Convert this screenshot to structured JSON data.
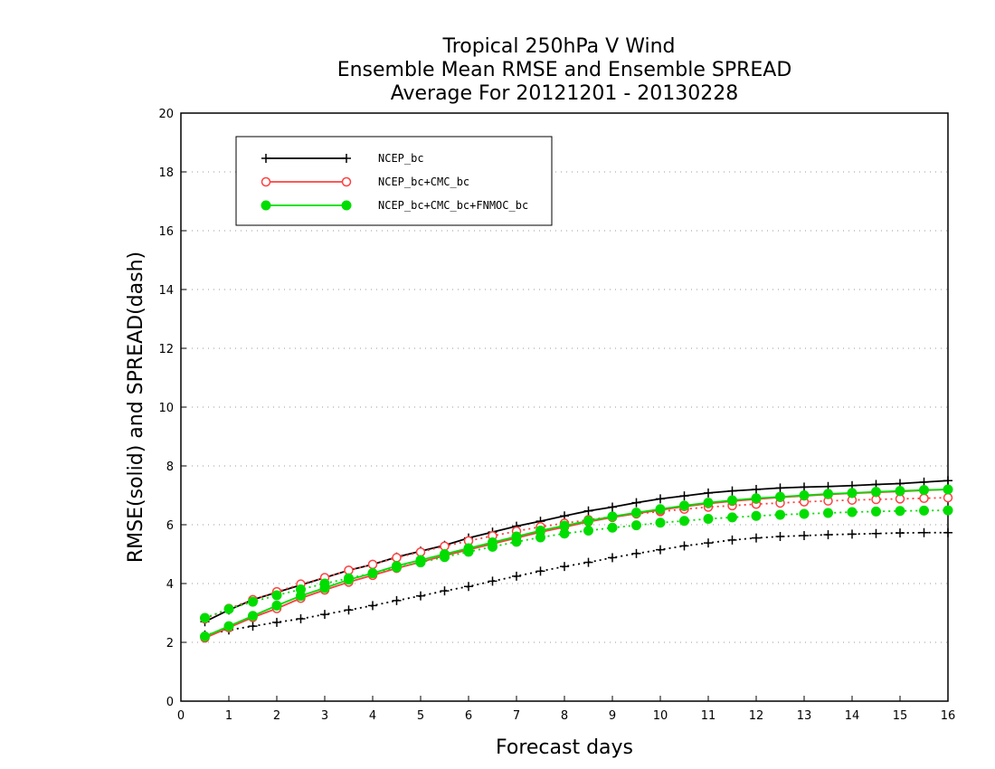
{
  "chart_data": {
    "type": "line",
    "title": [
      "Tropical 250hPa V Wind",
      "Ensemble Mean RMSE and Ensemble SPREAD",
      "Average For 20121201 - 20130228"
    ],
    "xlabel": "Forecast days",
    "ylabel": "RMSE(solid) and SPREAD(dash)",
    "xlim": [
      0,
      16
    ],
    "ylim": [
      0,
      20
    ],
    "xticks": [
      0,
      1,
      2,
      3,
      4,
      5,
      6,
      7,
      8,
      9,
      10,
      11,
      12,
      13,
      14,
      15,
      16
    ],
    "yticks": [
      0,
      2,
      4,
      6,
      8,
      10,
      12,
      14,
      16,
      18,
      20
    ],
    "grid": "horizontal dotted",
    "legend_position": "top-left",
    "x": [
      0.5,
      1,
      1.5,
      2,
      2.5,
      3,
      3.5,
      4,
      4.5,
      5,
      5.5,
      6,
      6.5,
      7,
      7.5,
      8,
      8.5,
      9,
      9.5,
      10,
      10.5,
      11,
      11.5,
      12,
      12.5,
      13,
      13.5,
      14,
      14.5,
      15,
      15.5,
      16
    ],
    "series": [
      {
        "name": "NCEP_bc",
        "color": "#000000",
        "marker": "plus",
        "rmse": [
          2.7,
          3.1,
          3.45,
          3.7,
          3.95,
          4.2,
          4.45,
          4.65,
          4.9,
          5.1,
          5.3,
          5.55,
          5.75,
          5.95,
          6.12,
          6.3,
          6.47,
          6.6,
          6.75,
          6.88,
          6.98,
          7.08,
          7.15,
          7.2,
          7.25,
          7.28,
          7.3,
          7.33,
          7.37,
          7.4,
          7.45,
          7.5
        ],
        "spread": [
          2.25,
          2.42,
          2.55,
          2.68,
          2.8,
          2.95,
          3.1,
          3.25,
          3.42,
          3.58,
          3.75,
          3.9,
          4.08,
          4.25,
          4.42,
          4.58,
          4.72,
          4.88,
          5.02,
          5.15,
          5.28,
          5.38,
          5.48,
          5.55,
          5.6,
          5.63,
          5.66,
          5.68,
          5.7,
          5.72,
          5.73,
          5.73
        ]
      },
      {
        "name": "NCEP_bc+CMC_bc",
        "color": "#ff4040",
        "marker": "open-circle",
        "rmse": [
          2.15,
          2.5,
          2.85,
          3.15,
          3.5,
          3.78,
          4.05,
          4.28,
          4.52,
          4.73,
          4.95,
          5.15,
          5.35,
          5.55,
          5.75,
          5.92,
          6.1,
          6.25,
          6.38,
          6.5,
          6.62,
          6.72,
          6.8,
          6.87,
          6.93,
          6.98,
          7.03,
          7.07,
          7.1,
          7.13,
          7.17,
          7.2
        ],
        "spread": [
          2.8,
          3.15,
          3.45,
          3.72,
          3.98,
          4.2,
          4.45,
          4.65,
          4.88,
          5.07,
          5.27,
          5.45,
          5.62,
          5.78,
          5.93,
          6.05,
          6.17,
          6.27,
          6.37,
          6.45,
          6.53,
          6.6,
          6.65,
          6.7,
          6.74,
          6.78,
          6.81,
          6.84,
          6.86,
          6.88,
          6.9,
          6.92
        ]
      },
      {
        "name": "NCEP_bc+CMC_bc+FNMOC_bc",
        "color": "#00dd00",
        "marker": "filled-circle",
        "rmse": [
          2.2,
          2.55,
          2.9,
          3.25,
          3.58,
          3.85,
          4.13,
          4.35,
          4.6,
          4.8,
          5.0,
          5.2,
          5.4,
          5.6,
          5.8,
          5.97,
          6.13,
          6.28,
          6.41,
          6.53,
          6.65,
          6.75,
          6.83,
          6.9,
          6.95,
          7.0,
          7.05,
          7.08,
          7.12,
          7.15,
          7.18,
          7.2
        ],
        "spread": [
          2.83,
          3.13,
          3.38,
          3.6,
          3.8,
          4.0,
          4.18,
          4.35,
          4.55,
          4.72,
          4.9,
          5.08,
          5.25,
          5.42,
          5.57,
          5.7,
          5.8,
          5.9,
          5.98,
          6.07,
          6.13,
          6.2,
          6.25,
          6.3,
          6.34,
          6.37,
          6.4,
          6.43,
          6.45,
          6.47,
          6.48,
          6.49
        ]
      }
    ]
  }
}
